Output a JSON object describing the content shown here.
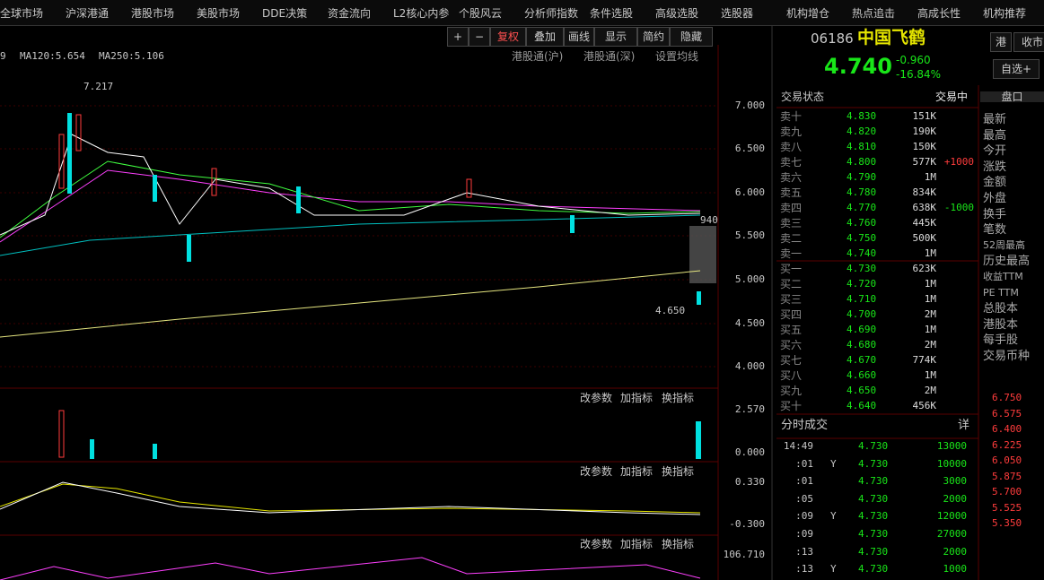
{
  "menu": [
    "全球市场",
    "沪深港通",
    "港股市场",
    "美股市场",
    "DDE决策",
    "资金流向",
    "L2核心内参",
    "个股风云",
    "分析师指数",
    "条件选股",
    "高级选股",
    "选股器",
    "机构增仓",
    "热点追击",
    "高成长性",
    "机构推荐"
  ],
  "toolbar": [
    "+",
    "−",
    "复权",
    "叠加",
    "画线",
    "显示",
    "简约",
    "隐藏"
  ],
  "ma_labels": [
    "9",
    "MA120:5.654",
    "MA250:5.106"
  ],
  "tabs": [
    "港股通(沪)",
    "港股通(深)",
    "设置均线"
  ],
  "price_axis": [
    "7.000",
    "6.500",
    "6.000",
    "5.500",
    "5.000",
    "4.500",
    "4.000"
  ],
  "annotations": {
    "high": "7.217",
    "low": "4.650",
    "last": "940"
  },
  "panel_buttons": [
    "改参数",
    "加指标",
    "换指标"
  ],
  "volume_axis": [
    "2.570",
    "0.000"
  ],
  "macd_axis": [
    "0.330",
    "-0.300"
  ],
  "third_axis": [
    "106.710"
  ],
  "quote": {
    "code": "06186",
    "name": "中国飞鹤",
    "price": "4.740",
    "change": "-0.960",
    "change_pct": "-16.84%",
    "add": "自选+",
    "market": "港",
    "close_tab": "收市"
  },
  "status": {
    "label": "交易状态",
    "value": "交易中"
  },
  "asks": [
    {
      "label": "卖十",
      "price": "4.830",
      "volume": "151K"
    },
    {
      "label": "卖九",
      "price": "4.820",
      "volume": "190K"
    },
    {
      "label": "卖八",
      "price": "4.810",
      "volume": "150K"
    },
    {
      "label": "卖七",
      "price": "4.800",
      "volume": "577K",
      "delta": "+1000"
    },
    {
      "label": "卖六",
      "price": "4.790",
      "volume": "1M"
    },
    {
      "label": "卖五",
      "price": "4.780",
      "volume": "834K"
    },
    {
      "label": "卖四",
      "price": "4.770",
      "volume": "638K",
      "delta": "-1000"
    },
    {
      "label": "卖三",
      "price": "4.760",
      "volume": "445K"
    },
    {
      "label": "卖二",
      "price": "4.750",
      "volume": "500K"
    },
    {
      "label": "卖一",
      "price": "4.740",
      "volume": "1M"
    }
  ],
  "bids": [
    {
      "label": "买一",
      "price": "4.730",
      "volume": "623K"
    },
    {
      "label": "买二",
      "price": "4.720",
      "volume": "1M"
    },
    {
      "label": "买三",
      "price": "4.710",
      "volume": "1M"
    },
    {
      "label": "买四",
      "price": "4.700",
      "volume": "2M"
    },
    {
      "label": "买五",
      "price": "4.690",
      "volume": "1M"
    },
    {
      "label": "买六",
      "price": "4.680",
      "volume": "2M"
    },
    {
      "label": "买七",
      "price": "4.670",
      "volume": "774K"
    },
    {
      "label": "买八",
      "price": "4.660",
      "volume": "1M"
    },
    {
      "label": "买九",
      "price": "4.650",
      "volume": "2M"
    },
    {
      "label": "买十",
      "price": "4.640",
      "volume": "456K"
    }
  ],
  "trades_header": {
    "title": "分时成交",
    "detail": "详"
  },
  "trades": [
    {
      "time": "14:49",
      "price": "4.730",
      "volume": "13000"
    },
    {
      "time": ":01",
      "flag": "Y",
      "price": "4.730",
      "volume": "10000"
    },
    {
      "time": ":01",
      "price": "4.730",
      "volume": "3000"
    },
    {
      "time": ":05",
      "price": "4.730",
      "volume": "2000"
    },
    {
      "time": ":09",
      "flag": "Y",
      "price": "4.730",
      "volume": "12000"
    },
    {
      "time": ":09",
      "price": "4.730",
      "volume": "27000"
    },
    {
      "time": ":13",
      "price": "4.730",
      "volume": "2000"
    },
    {
      "time": ":13",
      "flag": "Y",
      "price": "4.730",
      "volume": "1000"
    }
  ],
  "side_panel": {
    "tab": "盘口",
    "labels": [
      "最新",
      "最高",
      "今开",
      "涨跌",
      "金额",
      "外盘",
      "换手",
      "笔数",
      "52周最高",
      "历史最高",
      "收益TTM",
      "PE TTM",
      "总股本",
      "港股本",
      "每手股",
      "交易币种"
    ],
    "axis": [
      "6.750",
      "6.575",
      "6.400",
      "6.225",
      "6.050",
      "5.875",
      "5.700",
      "5.525",
      "5.350"
    ]
  }
}
